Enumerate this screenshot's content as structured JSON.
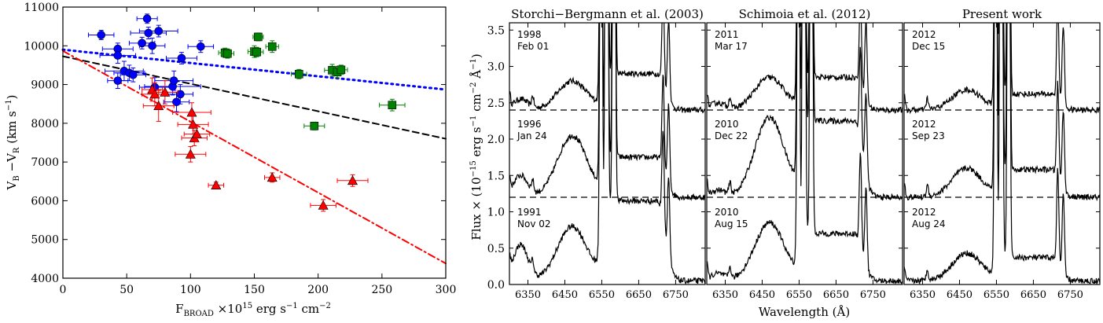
{
  "chart_data": [
    {
      "type": "scatter",
      "xlim": [
        0,
        300
      ],
      "ylim": [
        4000,
        11000
      ],
      "xticks": [
        0,
        50,
        100,
        150,
        200,
        250,
        300
      ],
      "yticks": [
        4000,
        5000,
        6000,
        7000,
        8000,
        9000,
        10000,
        11000
      ],
      "xlabel": {
        "main": "F",
        "sub": "BROAD",
        "rest": " ×10",
        "sup": "15",
        "unit1": " erg s",
        "sup2": "−1",
        "unit2": "  cm",
        "sup3": "−2"
      },
      "ylabel": {
        "main": "V",
        "sub1": "B",
        "mid": " −V",
        "sub2": "R",
        "unit": " (km s",
        "sup": "−1",
        "close": ")"
      },
      "colors": {
        "blue": "#0000ff",
        "green": "#008000",
        "red": "#ff0000",
        "black": "#000000"
      },
      "series": [
        {
          "name": "blue-circles",
          "marker": "circle",
          "color": "#0000ff",
          "points": [
            {
              "x": 30,
              "y": 10280,
              "xerr": 10,
              "yerr": 120
            },
            {
              "x": 43,
              "y": 9920,
              "xerr": 12,
              "yerr": 150
            },
            {
              "x": 43,
              "y": 9750,
              "xerr": 14,
              "yerr": 200
            },
            {
              "x": 43,
              "y": 9100,
              "xerr": 8,
              "yerr": 200
            },
            {
              "x": 48,
              "y": 9350,
              "xerr": 15,
              "yerr": 250
            },
            {
              "x": 52,
              "y": 9300,
              "xerr": 12,
              "yerr": 200
            },
            {
              "x": 55,
              "y": 9250,
              "xerr": 10,
              "yerr": 180
            },
            {
              "x": 62,
              "y": 10070,
              "xerr": 10,
              "yerr": 150
            },
            {
              "x": 66,
              "y": 10700,
              "xerr": 8,
              "yerr": 120
            },
            {
              "x": 67,
              "y": 10330,
              "xerr": 14,
              "yerr": 150
            },
            {
              "x": 70,
              "y": 10000,
              "xerr": 10,
              "yerr": 200
            },
            {
              "x": 72,
              "y": 8930,
              "xerr": 12,
              "yerr": 250
            },
            {
              "x": 75,
              "y": 10380,
              "xerr": 15,
              "yerr": 150
            },
            {
              "x": 86,
              "y": 8950,
              "xerr": 22,
              "yerr": 220
            },
            {
              "x": 87,
              "y": 9100,
              "xerr": 15,
              "yerr": 250
            },
            {
              "x": 89,
              "y": 8550,
              "xerr": 10,
              "yerr": 250
            },
            {
              "x": 93,
              "y": 9680,
              "xerr": 12,
              "yerr": 150
            },
            {
              "x": 92,
              "y": 8750,
              "xerr": 10,
              "yerr": 250
            },
            {
              "x": 108,
              "y": 9980,
              "xerr": 10,
              "yerr": 150
            }
          ]
        },
        {
          "name": "green-squares",
          "marker": "square",
          "color": "#008000",
          "points": [
            {
              "x": 127,
              "y": 9820,
              "xerr": 5,
              "yerr": 120
            },
            {
              "x": 129,
              "y": 9800,
              "xerr": 5,
              "yerr": 120
            },
            {
              "x": 150,
              "y": 9850,
              "xerr": 5,
              "yerr": 150
            },
            {
              "x": 152,
              "y": 9840,
              "xerr": 5,
              "yerr": 120
            },
            {
              "x": 153,
              "y": 10230,
              "xerr": 4,
              "yerr": 100
            },
            {
              "x": 164,
              "y": 9980,
              "xerr": 5,
              "yerr": 150
            },
            {
              "x": 185,
              "y": 9270,
              "xerr": 6,
              "yerr": 120
            },
            {
              "x": 197,
              "y": 7930,
              "xerr": 8,
              "yerr": 100
            },
            {
              "x": 211,
              "y": 9370,
              "xerr": 6,
              "yerr": 150
            },
            {
              "x": 215,
              "y": 9320,
              "xerr": 5,
              "yerr": 150
            },
            {
              "x": 218,
              "y": 9380,
              "xerr": 5,
              "yerr": 120
            },
            {
              "x": 258,
              "y": 8470,
              "xerr": 10,
              "yerr": 150
            }
          ]
        },
        {
          "name": "red-triangles",
          "marker": "triangle",
          "color": "#ff0000",
          "points": [
            {
              "x": 70,
              "y": 8870,
              "xerr": 8,
              "yerr": 300
            },
            {
              "x": 72,
              "y": 8750,
              "xerr": 10,
              "yerr": 300
            },
            {
              "x": 75,
              "y": 8450,
              "xerr": 12,
              "yerr": 400
            },
            {
              "x": 80,
              "y": 8800,
              "xerr": 10,
              "yerr": 300
            },
            {
              "x": 100,
              "y": 7200,
              "xerr": 12,
              "yerr": 200
            },
            {
              "x": 101,
              "y": 8280,
              "xerr": 15,
              "yerr": 250
            },
            {
              "x": 102,
              "y": 7970,
              "xerr": 12,
              "yerr": 250
            },
            {
              "x": 103,
              "y": 7620,
              "xerr": 10,
              "yerr": 200
            },
            {
              "x": 105,
              "y": 7720,
              "xerr": 10,
              "yerr": 200
            },
            {
              "x": 120,
              "y": 6400,
              "xerr": 6,
              "yerr": 80
            },
            {
              "x": 164,
              "y": 6600,
              "xerr": 6,
              "yerr": 120
            },
            {
              "x": 204,
              "y": 5880,
              "xerr": 10,
              "yerr": 150
            },
            {
              "x": 227,
              "y": 6520,
              "xerr": 12,
              "yerr": 150
            }
          ]
        }
      ],
      "fits": [
        {
          "name": "blue-dotted-fit",
          "color": "#0000ff",
          "style": "dotted",
          "y0": 9900,
          "y300": 8870
        },
        {
          "name": "black-dashed-fit",
          "color": "#000000",
          "style": "dashed",
          "y0": 9730,
          "y300": 7600
        },
        {
          "name": "red-dashdot-fit",
          "color": "#ff0000",
          "style": "dashdot",
          "y0": 9870,
          "y300": 4380
        }
      ]
    },
    {
      "type": "line",
      "xlim": [
        6300,
        6830
      ],
      "ylim": [
        0.0,
        3.6
      ],
      "xticks": [
        6350,
        6450,
        6550,
        6650,
        6750
      ],
      "yticks": [
        0.0,
        0.5,
        1.0,
        1.5,
        2.0,
        2.5,
        3.0,
        3.5
      ],
      "ytick_labels": [
        "0.0",
        "0.5",
        "1.0",
        "1.5",
        "2.0",
        "2.5",
        "3.0",
        "3.5"
      ],
      "xlabel": "Wavelength (Å)",
      "ylabel": {
        "main": "Flux × (10",
        "sup1": "−15",
        "mid": " erg s",
        "sup2": "−1",
        "mid2": "  cm",
        "sup3": "−2",
        "end": "  Å",
        "sup4": "−1",
        "close": ")"
      },
      "dashed_levels": [
        2.4,
        1.2
      ],
      "panels": [
        {
          "title": "Storchi−Bergmann et al. (2003)",
          "epochs": [
            {
              "year": "1998",
              "date": "Feb 01",
              "base": 2.4,
              "b1": 0.4,
              "b2": 0.5,
              "red": 0.15
            },
            {
              "year": "1996",
              "date": "Jan 24",
              "base": 1.2,
              "b1": 0.85,
              "b2": 0.55,
              "red": 0.3
            },
            {
              "year": "1991",
              "date": "Nov 02",
              "base": 0.05,
              "b1": 0.75,
              "b2": 1.1,
              "red": 0.5
            }
          ]
        },
        {
          "title": "Schimoia et al. (2012)",
          "epochs": [
            {
              "year": "2011",
              "date": "Mar 17",
              "base": 2.4,
              "b1": 0.45,
              "b2": 0.45,
              "red": 0.1
            },
            {
              "year": "2010",
              "date": "Dec 22",
              "base": 1.2,
              "b1": 1.1,
              "b2": 1.05,
              "red": 0.1
            },
            {
              "year": "2010",
              "date": "Aug 15",
              "base": 0.05,
              "b1": 0.8,
              "b2": 0.65,
              "red": 0.1
            }
          ]
        },
        {
          "title": "Present work",
          "epochs": [
            {
              "year": "2012",
              "date": "Dec 15",
              "base": 2.4,
              "b1": 0.28,
              "b2": 0.22,
              "red": 0.0
            },
            {
              "year": "2012",
              "date": "Sep 23",
              "base": 1.2,
              "b1": 0.4,
              "b2": 0.38,
              "red": 0.0
            },
            {
              "year": "2012",
              "date": "Aug 24",
              "base": 0.05,
              "b1": 0.38,
              "b2": 0.32,
              "red": 0.0
            }
          ]
        }
      ]
    }
  ]
}
